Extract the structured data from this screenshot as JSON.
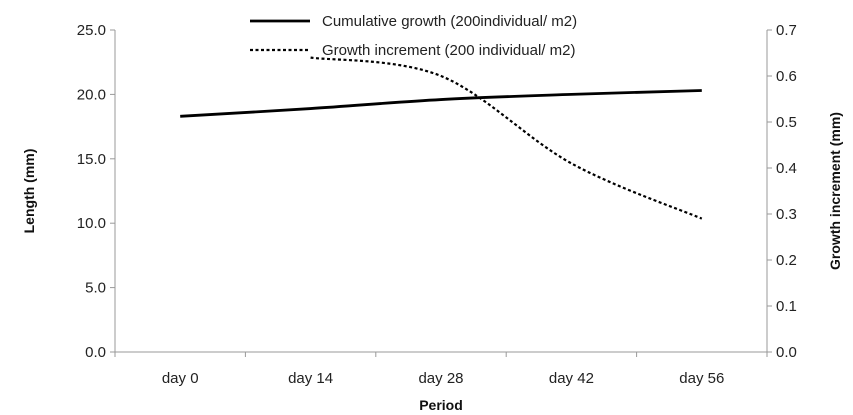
{
  "chart_data": {
    "type": "line",
    "categories": [
      "day 0",
      "day 14",
      "day 28",
      "day 42",
      "day 56"
    ],
    "xlabel": "Period",
    "ylabel": "Length (mm)",
    "y2label": "Growth increment (mm)",
    "ylim": [
      0,
      25
    ],
    "y2lim": [
      0,
      0.7
    ],
    "yticks": [
      "0.0",
      "5.0",
      "10.0",
      "15.0",
      "20.0",
      "25.0"
    ],
    "y2ticks": [
      "0.0",
      "0.1",
      "0.2",
      "0.3",
      "0.4",
      "0.5",
      "0.6",
      "0.7"
    ],
    "grid": false,
    "legend_position": "top-right",
    "series": [
      {
        "name": "Cumulative growth (200individual/ m2)",
        "axis": "left",
        "style": "solid",
        "color": "#000000",
        "values": [
          18.3,
          18.9,
          19.6,
          20.0,
          20.3
        ]
      },
      {
        "name": "Growth increment (200 individual/ m2)",
        "axis": "right",
        "style": "dotted",
        "color": "#000000",
        "x": [
          "day 14",
          "day 28",
          "day 42",
          "day 56"
        ],
        "values": [
          0.64,
          0.6,
          0.41,
          0.29
        ]
      }
    ]
  }
}
